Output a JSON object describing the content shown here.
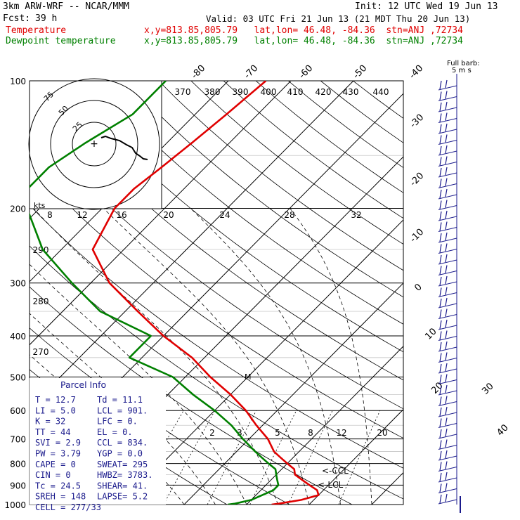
{
  "header": {
    "model": "3km ARW-WRF -- NCAR/MMM",
    "init": "Init: 12 UTC Wed 19 Jun 13",
    "fcst_label": "Fcst:",
    "fcst_value": "39 h",
    "valid": "Valid: 03 UTC Fri 21 Jun 13 (21 MDT Thu 20 Jun 13)",
    "temp_label": "Temperature",
    "temp_loc": "x,y=813.85,805.79   lat,lon= 46.48, -84.36  stn=ANJ ,72734",
    "dew_label": "Dewpoint temperature",
    "dew_loc": "x,y=813.85,805.79   lat,lon= 46.48, -84.36  stn=ANJ ,72734"
  },
  "colors": {
    "temperature": "#e00000",
    "dewpoint": "#008000",
    "grid": "#000000"
  },
  "chart_data": {
    "type": "line",
    "subtype": "skew-T log-P",
    "pressure_ticks": [
      "100",
      "200",
      "300",
      "400",
      "500",
      "600",
      "700",
      "800",
      "900",
      "1000"
    ],
    "isotherm_labels_top": [
      "-80",
      "-70",
      "-60",
      "-50",
      "-40"
    ],
    "isotherm_labels_right": [
      "-30",
      "-20",
      "-10",
      "0",
      "10",
      "20",
      "30",
      "40"
    ],
    "theta_labels": [
      "370",
      "380",
      "390",
      "400",
      "410",
      "420",
      "430",
      "440"
    ],
    "theta_labels_left": [
      "290",
      "280",
      "270"
    ],
    "mixing_ratio_labels": [
      "8",
      "12",
      "16",
      "20",
      "24",
      "28",
      "32"
    ],
    "mixing_ratio_labels_low": [
      "2",
      "3",
      "5",
      "8",
      "12",
      "20"
    ],
    "temperature": {
      "p": [
        1000,
        995,
        975,
        950,
        925,
        900,
        875,
        850,
        825,
        800,
        775,
        750,
        700,
        650,
        600,
        550,
        500,
        450,
        400,
        350,
        300,
        250,
        200,
        180,
        160,
        140,
        120,
        100
      ],
      "t": [
        14,
        15,
        18,
        20,
        19,
        17,
        15,
        13,
        12,
        10,
        8,
        6,
        3,
        -1,
        -5,
        -10,
        -16,
        -22,
        -30,
        -38,
        -47,
        -55,
        -58,
        -58,
        -57,
        -56,
        -55,
        -54
      ]
    },
    "dewpoint": {
      "p": [
        1000,
        995,
        975,
        950,
        925,
        900,
        875,
        850,
        825,
        800,
        775,
        750,
        700,
        650,
        600,
        550,
        500,
        450,
        400,
        350,
        300,
        250,
        200,
        180,
        160,
        140,
        120,
        100
      ],
      "td": [
        7,
        8,
        10,
        11,
        12,
        12,
        11,
        10,
        9,
        7,
        5,
        3,
        -1,
        -5,
        -10,
        -16,
        -22,
        -32,
        -32,
        -44,
        -53,
        -63,
        -72,
        -75,
        -75,
        -73,
        -70,
        -70
      ]
    },
    "hodograph": {
      "label": "kts",
      "rings": [
        "25",
        "50",
        "75"
      ]
    },
    "wind_barbs_label": "Full barb:",
    "wind_barbs_sub": "5 m s"
  },
  "parcel": {
    "title": "Parcel Info",
    "rows": [
      {
        "a": "T  =   12.7",
        "b": "Td =  11.1"
      },
      {
        "a": "LI =    5.0",
        "b": "LCL =  901."
      },
      {
        "a": "K  =     32",
        "b": "LFC =    0."
      },
      {
        "a": "TT =     44",
        "b": "EL  =    0."
      },
      {
        "a": "SVI =   2.9",
        "b": "CCL =  834."
      },
      {
        "a": "PW =   3.79",
        "b": "YGP =   0.0"
      },
      {
        "a": "CAPE =     0",
        "b": "SWEAT=  295"
      },
      {
        "a": "CIN =      0",
        "b": "HWBZ= 3783."
      },
      {
        "a": "Tc =    24.5",
        "b": "SHEAR=  41."
      },
      {
        "a": "SREH =   148",
        "b": "LAPSE=  5.2"
      },
      {
        "a": "CELL = 277/33",
        "b": ""
      }
    ]
  },
  "markers": {
    "ccl": "<-CCL",
    "lcl": "<-LCL",
    "m": "M"
  }
}
